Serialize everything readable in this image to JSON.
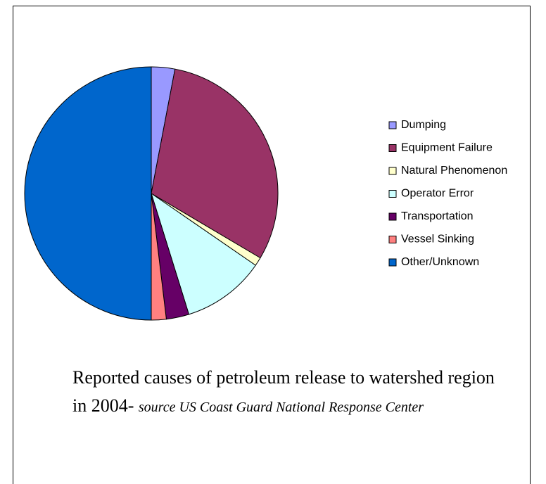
{
  "chart_data": {
    "type": "pie",
    "title": "Reported causes of petroleum release to watershed region in 2004-",
    "source": "source US Coast Guard National Response Center",
    "categories": [
      "Dumping",
      "Equipment Failure",
      "Natural Phenomenon",
      "Operator Error",
      "Transportation",
      "Vessel Sinking",
      "Other/Unknown"
    ],
    "values": [
      3,
      30.5,
      1.1,
      10.6,
      2.9,
      1.9,
      50
    ],
    "colors": [
      "#9999ff",
      "#993366",
      "#ffffcc",
      "#ccffff",
      "#660066",
      "#ff8080",
      "#0066cc"
    ],
    "legend": "right"
  }
}
